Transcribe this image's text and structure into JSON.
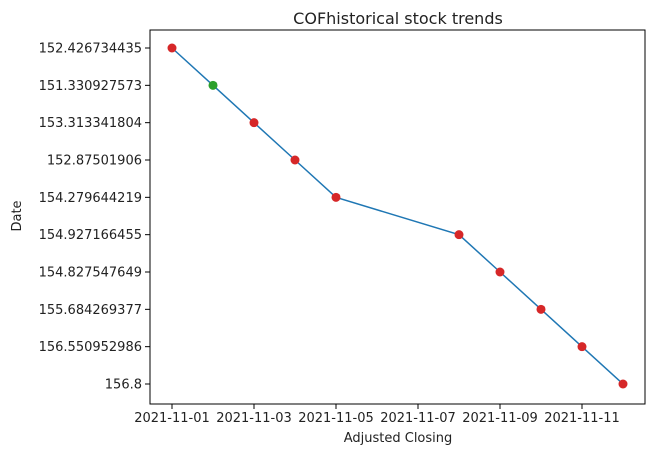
{
  "chart_data": {
    "type": "line",
    "title": "COFhistorical stock trends",
    "xlabel": "Adjusted Closing",
    "ylabel": "Date",
    "x_ticks": [
      "2021-11-01",
      "2021-11-03",
      "2021-11-05",
      "2021-11-07",
      "2021-11-09",
      "2021-11-11"
    ],
    "y_categories": [
      "152.426734435",
      "151.330927573",
      "153.313341804",
      "152.87501906",
      "154.279644219",
      "154.927166455",
      "154.827547649",
      "155.684269377",
      "156.550952986",
      "156.8"
    ],
    "grid": false,
    "series": [
      {
        "line_color": "#1f77b4",
        "points": [
          {
            "x": "2021-11-01",
            "y": "152.426734435",
            "marker_color": "#d62728"
          },
          {
            "x": "2021-11-02",
            "y": "151.330927573",
            "marker_color": "#2ca02c"
          },
          {
            "x": "2021-11-03",
            "y": "153.313341804",
            "marker_color": "#d62728"
          },
          {
            "x": "2021-11-04",
            "y": "152.87501906",
            "marker_color": "#d62728"
          },
          {
            "x": "2021-11-05",
            "y": "154.279644219",
            "marker_color": "#d62728"
          },
          {
            "x": "2021-11-08",
            "y": "154.927166455",
            "marker_color": "#d62728"
          },
          {
            "x": "2021-11-09",
            "y": "154.827547649",
            "marker_color": "#d62728"
          },
          {
            "x": "2021-11-10",
            "y": "155.684269377",
            "marker_color": "#d62728"
          },
          {
            "x": "2021-11-11",
            "y": "156.550952986",
            "marker_color": "#d62728"
          },
          {
            "x": "2021-11-12",
            "y": "156.8",
            "marker_color": "#d62728"
          }
        ]
      }
    ]
  }
}
